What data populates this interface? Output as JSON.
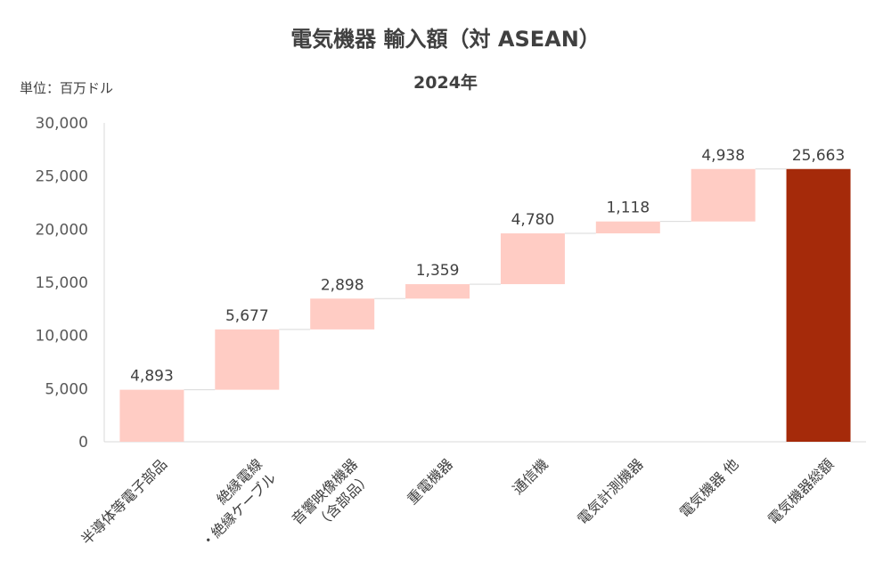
{
  "chart_data": {
    "type": "bar",
    "subtype": "waterfall",
    "title": "電気機器 輸入額（対 ASEAN）",
    "subtitle": "2024年",
    "unit_label": "単位：百万ドル",
    "categories": [
      "半導体等電子部品",
      "絶縁電線・絶縁ケーブル",
      "音響映像機器（含部品）",
      "重電機器",
      "通信機",
      "電気計測機器",
      "電気機器 他",
      "電気機器総額"
    ],
    "category_lines": [
      [
        "半導体等電子部品"
      ],
      [
        "絶縁電線",
        "・絶縁ケーブル"
      ],
      [
        "音響映像機器",
        "（含部品）"
      ],
      [
        "重電機器"
      ],
      [
        "通信機"
      ],
      [
        "電気計測機器"
      ],
      [
        "電気機器 他"
      ],
      [
        "電気機器総額"
      ]
    ],
    "values": [
      4893,
      5677,
      2898,
      1359,
      4780,
      1118,
      4938,
      25663
    ],
    "value_labels": [
      "4,893",
      "5,677",
      "2,898",
      "1,359",
      "4,780",
      "1,118",
      "4,938",
      "25,663"
    ],
    "total_index": 7,
    "ylim": [
      0,
      30000
    ],
    "y_ticks": [
      0,
      5000,
      10000,
      15000,
      20000,
      25000,
      30000
    ],
    "y_tick_labels": [
      "0",
      "5,000",
      "10,000",
      "15,000",
      "20,000",
      "25,000",
      "30,000"
    ],
    "grid": false,
    "colors": {
      "increment": "#FFCCC4",
      "total": "#A52A0A",
      "connector": "#D9D9D9",
      "axis": "#D9D9D9"
    }
  }
}
